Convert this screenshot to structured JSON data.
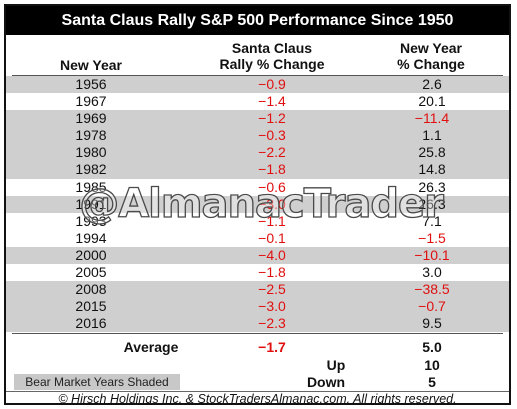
{
  "title": "Santa Claus Rally S&P 500 Performance Since 1950",
  "headers": {
    "year": "New Year",
    "sc_line1": "Santa Claus",
    "sc_line2": "Rally % Change",
    "ny_line1": "New Year",
    "ny_line2": "% Change"
  },
  "rows": [
    {
      "year": "1956",
      "sc": "−0.9",
      "ny": "2.6",
      "bear": true
    },
    {
      "year": "1967",
      "sc": "−1.4",
      "ny": "20.1",
      "bear": false
    },
    {
      "year": "1969",
      "sc": "−1.2",
      "ny": "−11.4",
      "bear": true
    },
    {
      "year": "1978",
      "sc": "−0.3",
      "ny": "1.1",
      "bear": true
    },
    {
      "year": "1980",
      "sc": "−2.2",
      "ny": "25.8",
      "bear": true
    },
    {
      "year": "1982",
      "sc": "−1.8",
      "ny": "14.8",
      "bear": true
    },
    {
      "year": "1985",
      "sc": "−0.6",
      "ny": "26.3",
      "bear": false
    },
    {
      "year": "1991",
      "sc": "−3.0",
      "ny": "26.3",
      "bear": true
    },
    {
      "year": "1993",
      "sc": "−1.1",
      "ny": "7.1",
      "bear": false
    },
    {
      "year": "1994",
      "sc": "−0.1",
      "ny": "−1.5",
      "bear": false
    },
    {
      "year": "2000",
      "sc": "−4.0",
      "ny": "−10.1",
      "bear": true
    },
    {
      "year": "2005",
      "sc": "−1.8",
      "ny": "3.0",
      "bear": false
    },
    {
      "year": "2008",
      "sc": "−2.5",
      "ny": "−38.5",
      "bear": true
    },
    {
      "year": "2015",
      "sc": "−3.0",
      "ny": "−0.7",
      "bear": true
    },
    {
      "year": "2016",
      "sc": "−2.3",
      "ny": "9.5",
      "bear": true
    }
  ],
  "summary": {
    "average_label": "Average",
    "average_sc": "−1.7",
    "average_ny": "5.0",
    "up_label": "Up",
    "up_value": "10",
    "down_label": "Down",
    "down_value": "5"
  },
  "legend": "Bear Market Years Shaded",
  "watermark": "@AlmanacTrader",
  "footer": "© Hirsch Holdings Inc. & StockTradersAlmanac.com. All rights reserved.",
  "colors": {
    "negative": "#e01010",
    "bear_shade": "#cfcfcf",
    "title_bg": "#000000"
  }
}
